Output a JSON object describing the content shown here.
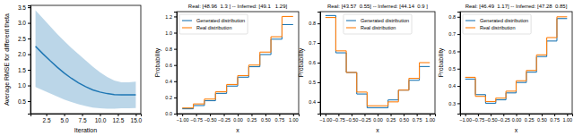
{
  "chart_data": [
    {
      "type": "line",
      "x_label": "Iteration",
      "y_label": "Average RMSE for different theta",
      "x": [
        1,
        2,
        3,
        4,
        5,
        6,
        7,
        8,
        9,
        10,
        11,
        12,
        13,
        14,
        15
      ],
      "series": [
        {
          "color": "#1f77b4",
          "values": [
            2.25,
            2.02,
            1.8,
            1.59,
            1.4,
            1.23,
            1.08,
            0.96,
            0.86,
            0.79,
            0.74,
            0.71,
            0.7,
            0.7,
            0.7
          ],
          "lower": [
            0.95,
            0.85,
            0.75,
            0.65,
            0.55,
            0.47,
            0.4,
            0.34,
            0.29,
            0.27,
            0.26,
            0.26,
            0.27,
            0.27,
            0.28
          ],
          "upper": [
            3.4,
            3.15,
            2.9,
            2.65,
            2.42,
            2.2,
            2.0,
            1.8,
            1.6,
            1.42,
            1.27,
            1.16,
            1.1,
            1.1,
            1.12
          ]
        }
      ],
      "xlim": [
        0.3,
        15.7
      ],
      "ylim": [
        0.1,
        3.56
      ],
      "xticks": [
        2.5,
        {
          "value": 5,
          "label": "5.0"
        },
        7.5,
        {
          "value": 10,
          "label": "10.0"
        },
        12.5,
        {
          "value": 15,
          "label": "15.0"
        }
      ],
      "yticks": [
        0.5,
        {
          "value": 1,
          "label": "1.0"
        },
        1.5,
        {
          "value": 2,
          "label": "2.0"
        },
        2.5,
        {
          "value": 3,
          "label": "3.0"
        },
        3.5
      ]
    },
    {
      "type": "histogram",
      "title": "Real: [48.96  1.3 ] -- Inferred: [49.1   1.29]",
      "x_label": "x",
      "y_label": "Probability",
      "bins": [
        -1,
        -0.8,
        -0.6,
        -0.4,
        -0.2,
        0,
        0.2,
        0.4,
        0.6,
        0.8,
        1
      ],
      "series": [
        {
          "name": "Generated distribution",
          "color": "#1f77b4",
          "values": [
            0.06,
            0.1,
            0.16,
            0.25,
            0.34,
            0.45,
            0.58,
            0.73,
            0.92,
            1.1
          ]
        },
        {
          "name": "Real distribution",
          "color": "#ff7f0e",
          "values": [
            0.07,
            0.12,
            0.18,
            0.27,
            0.36,
            0.47,
            0.6,
            0.76,
            0.95,
            1.2
          ]
        }
      ],
      "xlim": [
        -1.1,
        1.1
      ],
      "ylim": [
        0,
        1.26
      ],
      "xticks": [
        {
          "value": -1,
          "label": "−1.00"
        },
        {
          "value": -0.75,
          "label": "−0.75"
        },
        {
          "value": -0.5,
          "label": "−0.50"
        },
        {
          "value": -0.25,
          "label": "−0.25"
        },
        {
          "value": 0,
          "label": "0.00"
        },
        0.25,
        {
          "value": 0.5,
          "label": "0.50"
        },
        0.75,
        {
          "value": 1,
          "label": "1.00"
        }
      ],
      "yticks": [
        {
          "value": 0,
          "label": "0.0"
        },
        0.2,
        0.4,
        0.6,
        0.8,
        {
          "value": 1,
          "label": "1.0"
        },
        1.2
      ],
      "legend": "upper left"
    },
    {
      "type": "histogram",
      "title": "Real: [43.57  0.55] -- Inferred: [44.14  0.9 ]",
      "x_label": "x",
      "y_label": "Probability",
      "bins": [
        -1,
        -0.8,
        -0.6,
        -0.4,
        -0.2,
        0,
        0.2,
        0.4,
        0.6,
        0.8,
        1
      ],
      "series": [
        {
          "name": "Generated distribution",
          "color": "#1f77b4",
          "values": [
            0.84,
            0.65,
            0.55,
            0.44,
            0.37,
            0.37,
            0.41,
            0.46,
            0.51,
            0.58
          ]
        },
        {
          "name": "Real distribution",
          "color": "#ff7f0e",
          "values": [
            0.83,
            0.66,
            0.55,
            0.45,
            0.38,
            0.38,
            0.4,
            0.46,
            0.52,
            0.6
          ]
        }
      ],
      "xlim": [
        -1.1,
        1.1
      ],
      "ylim": [
        0.34,
        0.86
      ],
      "xticks": [
        {
          "value": -1,
          "label": "−1.00"
        },
        {
          "value": -0.75,
          "label": "−0.75"
        },
        {
          "value": -0.5,
          "label": "−0.50"
        },
        {
          "value": -0.25,
          "label": "−0.25"
        },
        {
          "value": 0,
          "label": "0.00"
        },
        0.25,
        {
          "value": 0.5,
          "label": "0.50"
        },
        0.75,
        {
          "value": 1,
          "label": "1.00"
        }
      ],
      "yticks": [
        0.4,
        0.5,
        0.6,
        0.7,
        0.8
      ],
      "legend": "upper center"
    },
    {
      "type": "histogram",
      "title": "Real: [46.49  1.17] -- Inferred: [47.28  0.85]",
      "x_label": "x",
      "y_label": "Probability",
      "bins": [
        -1,
        -0.8,
        -0.6,
        -0.4,
        -0.2,
        0,
        0.2,
        0.4,
        0.6,
        0.8,
        1
      ],
      "series": [
        {
          "name": "Generated distribution",
          "color": "#1f77b4",
          "values": [
            0.44,
            0.35,
            0.3,
            0.32,
            0.36,
            0.42,
            0.48,
            0.57,
            0.66,
            0.79
          ]
        },
        {
          "name": "Real distribution",
          "color": "#ff7f0e",
          "values": [
            0.45,
            0.34,
            0.31,
            0.33,
            0.37,
            0.43,
            0.49,
            0.58,
            0.68,
            0.8
          ]
        }
      ],
      "xlim": [
        -1.1,
        1.1
      ],
      "ylim": [
        0.24,
        0.83
      ],
      "xticks": [
        {
          "value": -1,
          "label": "−1.00"
        },
        {
          "value": -0.75,
          "label": "−0.75"
        },
        {
          "value": -0.5,
          "label": "−0.50"
        },
        {
          "value": -0.25,
          "label": "−0.25"
        },
        {
          "value": 0,
          "label": "0.00"
        },
        0.25,
        {
          "value": 0.5,
          "label": "0.50"
        },
        0.75,
        {
          "value": 1,
          "label": "1.00"
        }
      ],
      "yticks": [
        0.3,
        0.4,
        0.5,
        0.6,
        0.7,
        0.8
      ],
      "legend": "upper left"
    }
  ]
}
